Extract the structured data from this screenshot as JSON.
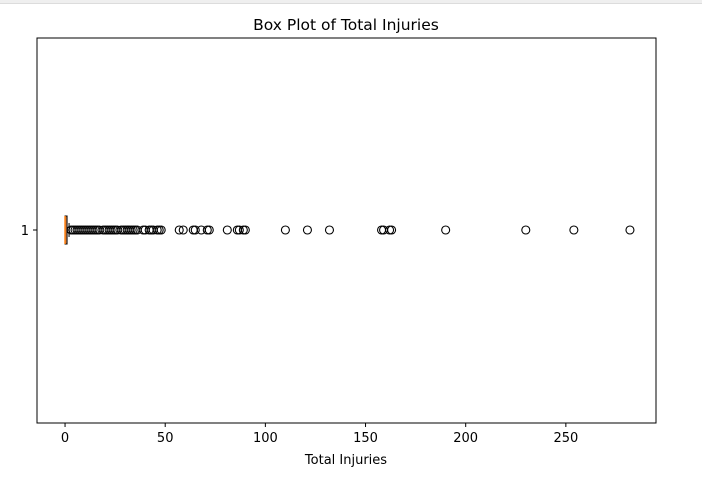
{
  "chart_data": {
    "type": "boxplot",
    "orientation": "horizontal",
    "title": "Box Plot of Total Injuries",
    "xlabel": "Total Injuries",
    "ylabel": "",
    "xlim": [
      -14,
      295
    ],
    "xticks": [
      0,
      50,
      100,
      150,
      200,
      250
    ],
    "yticks": [
      "1"
    ],
    "grid": false,
    "box": {
      "category": "1",
      "whisker_low": 0,
      "q1": 0,
      "median": 0,
      "q3": 1,
      "whisker_high": 2,
      "box_color": "#d0885a",
      "median_color": "#ff7f0e"
    },
    "outliers": [
      3,
      4,
      5,
      6,
      7,
      8,
      9,
      10,
      11,
      12,
      13,
      14,
      15,
      16,
      17,
      19,
      20,
      21,
      22,
      23,
      24,
      25,
      26,
      28,
      29,
      30,
      31,
      32,
      33,
      34,
      35,
      36,
      39,
      40,
      42,
      43,
      44,
      46,
      47,
      48,
      57,
      59,
      64,
      65,
      68,
      71,
      72,
      81,
      86,
      87,
      89,
      90,
      110,
      121,
      132,
      158,
      159,
      162,
      163,
      190,
      230,
      254,
      282
    ]
  }
}
